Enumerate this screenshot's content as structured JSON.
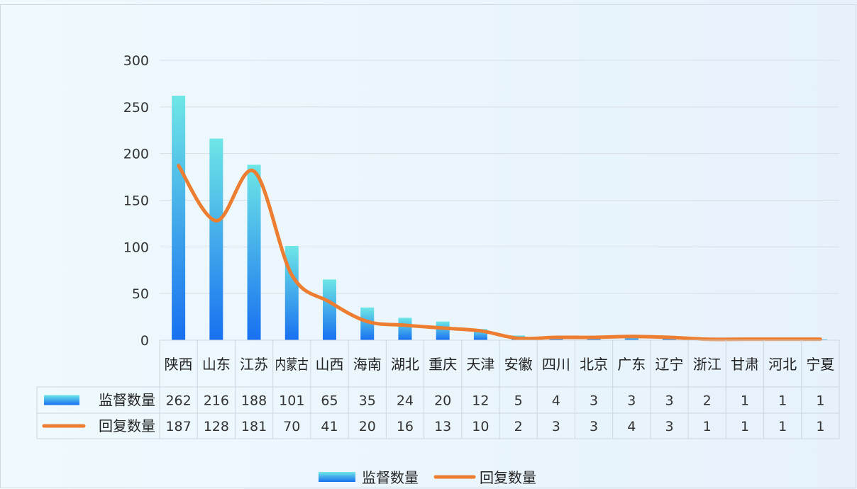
{
  "chart_data": {
    "type": "bar",
    "categories": [
      "陕西",
      "山东",
      "江苏",
      "内蒙古",
      "山西",
      "海南",
      "湖北",
      "重庆",
      "天津",
      "安徽",
      "四川",
      "北京",
      "广东",
      "辽宁",
      "浙江",
      "甘肃",
      "河北",
      "宁夏"
    ],
    "series": [
      {
        "name": "监督数量",
        "type": "bar",
        "values": [
          262,
          216,
          188,
          101,
          65,
          35,
          24,
          20,
          12,
          5,
          4,
          3,
          3,
          3,
          2,
          1,
          1,
          1
        ],
        "color": "#1e80f2"
      },
      {
        "name": "回复数量",
        "type": "line",
        "values": [
          187,
          128,
          181,
          70,
          41,
          20,
          16,
          13,
          10,
          2,
          3,
          3,
          4,
          3,
          1,
          1,
          1,
          1
        ],
        "color": "#ed7d31"
      }
    ],
    "yticks": [
      0,
      50,
      100,
      150,
      200,
      250,
      300
    ],
    "ylim": [
      0,
      300
    ],
    "grid": true,
    "legend_position": "bottom",
    "data_table": true
  }
}
